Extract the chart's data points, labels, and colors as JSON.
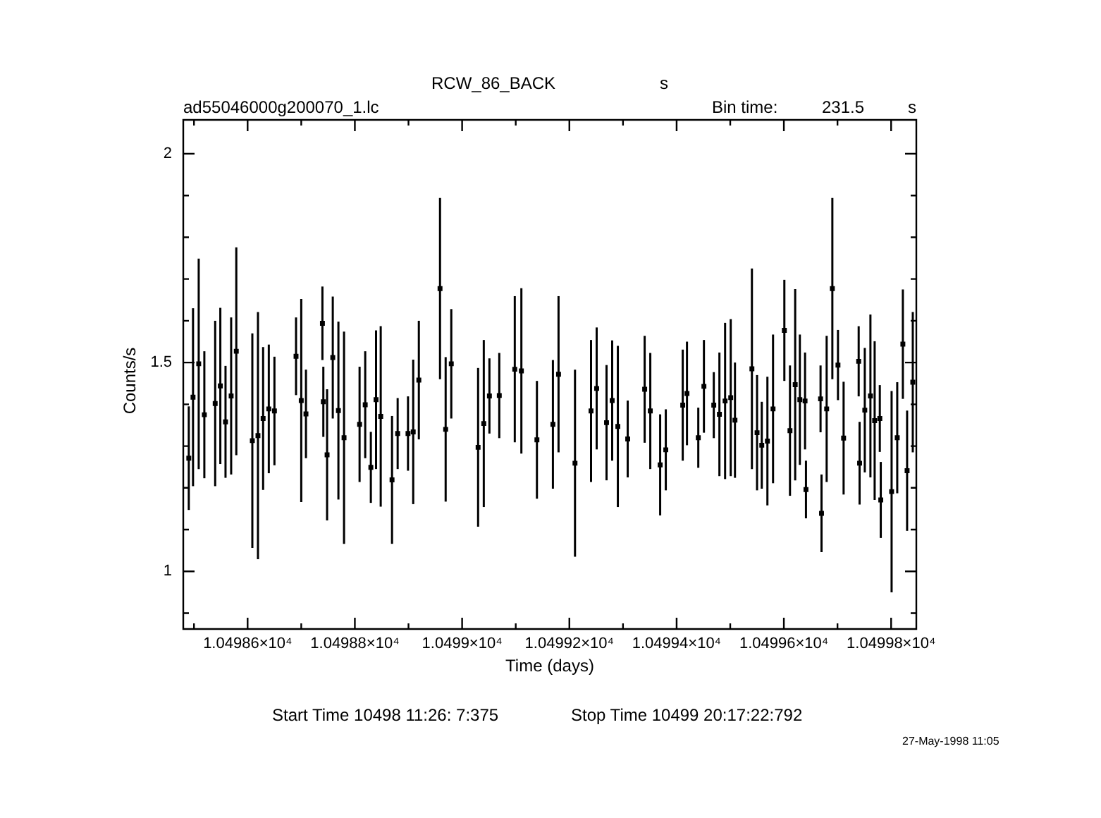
{
  "chart_data": {
    "type": "scatter",
    "title": "RCW_86_BACK",
    "xlabel": "Time (days)",
    "ylabel": "Counts/s",
    "annotations": [
      "s",
      "ad55046000g200070_1.lc",
      "Bin time:",
      "231.5",
      "s",
      "Start Time 10498 11:26: 7:375",
      "Stop Time 10499 20:17:22:792",
      "27-May-1998 11:05"
    ],
    "xlim": [
      10498.48,
      10499.847
    ],
    "ylim": [
      0.862,
      2.081
    ],
    "xticks": [
      {
        "value": 10498.5,
        "label": null
      },
      {
        "value": 10498.6,
        "label": "1.04986×10⁴"
      },
      {
        "value": 10498.7,
        "label": null
      },
      {
        "value": 10498.8,
        "label": "1.04988×10⁴"
      },
      {
        "value": 10498.9,
        "label": null
      },
      {
        "value": 10499.0,
        "label": "1.0499×10⁴"
      },
      {
        "value": 10499.1,
        "label": null
      },
      {
        "value": 10499.2,
        "label": "1.04992×10⁴"
      },
      {
        "value": 10499.3,
        "label": null
      },
      {
        "value": 10499.4,
        "label": "1.04994×10⁴"
      },
      {
        "value": 10499.5,
        "label": null
      },
      {
        "value": 10499.6,
        "label": "1.04996×10⁴"
      },
      {
        "value": 10499.7,
        "label": null
      },
      {
        "value": 10499.8,
        "label": "1.04998×10⁴"
      }
    ],
    "yticks": [
      {
        "value": 0.9,
        "label": null
      },
      1,
      {
        "value": 1.1,
        "label": null
      },
      {
        "value": 1.2,
        "label": null
      },
      {
        "value": 1.3,
        "label": null
      },
      {
        "value": 1.4,
        "label": null
      },
      1.5,
      {
        "value": 1.6,
        "label": null
      },
      {
        "value": 1.7,
        "label": null
      },
      {
        "value": 1.8,
        "label": null
      },
      {
        "value": 1.9,
        "label": null
      },
      2
    ],
    "grid": false,
    "legend": false,
    "marker": "square",
    "series": [
      {
        "color": "#000000",
        "x": [
          10498.4903,
          10498.4982,
          10498.5088,
          10498.5193,
          10498.5395,
          10498.5491,
          10498.5588,
          10498.5693,
          10498.5789,
          10498.6088,
          10498.6193,
          10498.6289,
          10498.6395,
          10498.65,
          10498.6903,
          10498.7,
          10498.7088,
          10498.7395,
          10498.7412,
          10498.7482,
          10498.7588,
          10498.7693,
          10498.7798,
          10498.8088,
          10498.8193,
          10498.8298,
          10498.8395,
          10498.8482,
          10498.8693,
          10498.8798,
          10498.8991,
          10498.9088,
          10498.9193,
          10498.9588,
          10498.9693,
          10498.9798,
          10499.0298,
          10499.0404,
          10499.0509,
          10499.0693,
          10499.0982,
          10499.1105,
          10499.1395,
          10499.1693,
          10499.1798,
          10499.2105,
          10499.2404,
          10499.2509,
          10499.2693,
          10499.2798,
          10499.2904,
          10499.3088,
          10499.3404,
          10499.3509,
          10499.3693,
          10499.3798,
          10499.4114,
          10499.4193,
          10499.4404,
          10499.4509,
          10499.4693,
          10499.4798,
          10499.4904,
          10499.5009,
          10499.5088,
          10499.5404,
          10499.55,
          10499.5588,
          10499.5693,
          10499.5798,
          10499.6009,
          10499.6114,
          10499.6211,
          10499.6298,
          10499.6395,
          10499.6412,
          10499.6684,
          10499.6702,
          10499.6798,
          10499.6904,
          10499.7009,
          10499.7114,
          10499.7395,
          10499.7412,
          10499.7509,
          10499.7614,
          10499.7693,
          10499.7789,
          10499.7807,
          10499.8009,
          10499.8114,
          10499.8219,
          10499.8298,
          10499.8404
        ],
        "values": [
          1.271,
          1.417,
          1.497,
          1.375,
          1.402,
          1.444,
          1.358,
          1.42,
          1.527,
          1.313,
          1.325,
          1.366,
          1.389,
          1.384,
          1.515,
          1.409,
          1.377,
          1.594,
          1.406,
          1.279,
          1.512,
          1.385,
          1.32,
          1.352,
          1.399,
          1.249,
          1.411,
          1.371,
          1.219,
          1.33,
          1.33,
          1.334,
          1.458,
          1.677,
          1.34,
          1.497,
          1.297,
          1.354,
          1.42,
          1.421,
          1.484,
          1.48,
          1.315,
          1.352,
          1.472,
          1.259,
          1.384,
          1.438,
          1.356,
          1.409,
          1.347,
          1.317,
          1.436,
          1.384,
          1.255,
          1.291,
          1.398,
          1.426,
          1.32,
          1.443,
          1.398,
          1.376,
          1.408,
          1.416,
          1.362,
          1.485,
          1.332,
          1.302,
          1.312,
          1.389,
          1.577,
          1.337,
          1.447,
          1.411,
          1.408,
          1.196,
          1.413,
          1.139,
          1.389,
          1.677,
          1.494,
          1.319,
          1.503,
          1.259,
          1.386,
          1.42,
          1.361,
          1.366,
          1.171,
          1.191,
          1.32,
          1.544,
          1.241,
          1.453
        ],
        "errors": [
          0.124,
          0.213,
          0.252,
          0.152,
          0.198,
          0.187,
          0.134,
          0.188,
          0.249,
          0.257,
          0.296,
          0.171,
          0.154,
          0.13,
          0.093,
          0.243,
          0.106,
          0.088,
          0.084,
          0.157,
          0.146,
          0.213,
          0.254,
          0.138,
          0.128,
          0.085,
          0.166,
          0.216,
          0.153,
          0.085,
          0.089,
          0.173,
          0.142,
          0.217,
          0.173,
          0.131,
          0.19,
          0.2,
          0.09,
          0.102,
          0.175,
          0.198,
          0.141,
          0.154,
          0.187,
          0.224,
          0.17,
          0.146,
          0.138,
          0.144,
          0.193,
          0.092,
          0.128,
          0.139,
          0.121,
          0.097,
          0.133,
          0.124,
          0.072,
          0.111,
          0.079,
          0.148,
          0.187,
          0.188,
          0.138,
          0.24,
          0.138,
          0.104,
          0.154,
          0.178,
          0.121,
          0.156,
          0.229,
          0.156,
          0.116,
          0.069,
          0.08,
          0.093,
          0.175,
          0.217,
          0.084,
          0.135,
          0.084,
          0.099,
          0.149,
          0.195,
          0.19,
          0.08,
          0.091,
          0.241,
          0.133,
          0.131,
          0.144,
          0.168
        ]
      }
    ]
  }
}
